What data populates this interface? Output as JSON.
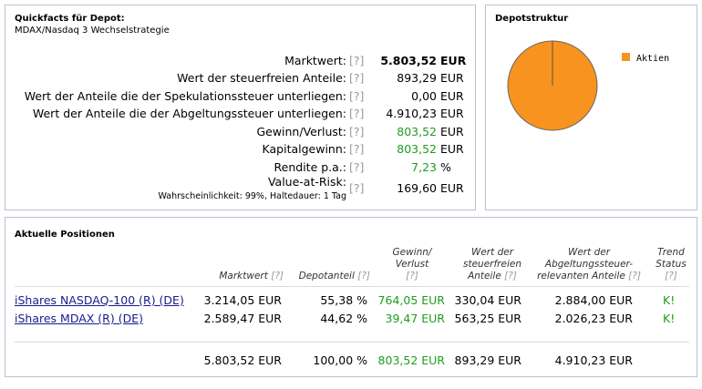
{
  "quickfacts": {
    "title": "Quickfacts für Depot:",
    "subtitle": "MDAX/Nasdaq 3 Wechselstrategie",
    "help": "[?]",
    "rows": [
      {
        "label": "Marktwert:",
        "value": "5.803,52",
        "unit": "EUR",
        "bold": true
      },
      {
        "label": "Wert der steuerfreien Anteile:",
        "value": "893,29",
        "unit": "EUR"
      },
      {
        "label": "Wert der Anteile die der Spekulationssteuer unterliegen:",
        "value": "0,00",
        "unit": "EUR"
      },
      {
        "label": "Wert der Anteile die der Abgeltungssteuer unterliegen:",
        "value": "4.910,23",
        "unit": "EUR"
      },
      {
        "label": "Gewinn/Verlust:",
        "value": "803,52",
        "unit": "EUR",
        "green": true
      },
      {
        "label": "Kapitalgewinn:",
        "value": "803,52",
        "unit": "EUR",
        "green": true
      },
      {
        "label": "Rendite p.a.:",
        "value": "7,23",
        "unit": "%",
        "green": true
      },
      {
        "label": "Value-at-Risk:",
        "sublabel": "Wahrscheinlichkeit: 99%, Haltedauer: 1 Tag",
        "value": "169,60",
        "unit": "EUR"
      }
    ]
  },
  "depotstruktur": {
    "title": "Depotstruktur",
    "legend": [
      {
        "name": "Aktien",
        "color": "#f7931e",
        "share": 1.0
      }
    ]
  },
  "positions": {
    "title": "Aktuelle Positionen",
    "help": "[?]",
    "headers": {
      "marktwert": "Marktwert",
      "depotanteil": "Depotanteil",
      "gewinn": [
        "Gewinn/",
        "Verlust"
      ],
      "steuerfrei": [
        "Wert der",
        "steuerfreien",
        "Anteile"
      ],
      "abgeltung": [
        "Wert der",
        "Abgeltungssteuer-",
        "relevanten Anteile"
      ],
      "trend": [
        "Trend",
        "Status"
      ]
    },
    "rows": [
      {
        "name": "iShares NASDAQ-100 (R) (DE)",
        "marktwert": "3.214,05 EUR",
        "anteil": "55,38 %",
        "gewinn": "764,05 EUR",
        "steuerfrei": "330,04 EUR",
        "abgeltung": "2.884,00 EUR",
        "trend": "K!"
      },
      {
        "name": "iShares MDAX (R) (DE)",
        "marktwert": "2.589,47 EUR",
        "anteil": "44,62 %",
        "gewinn": "39,47 EUR",
        "steuerfrei": "563,25 EUR",
        "abgeltung": "2.026,23 EUR",
        "trend": "K!"
      }
    ],
    "totals": {
      "marktwert": "5.803,52 EUR",
      "anteil": "100,00 %",
      "gewinn": "803,52 EUR",
      "steuerfrei": "893,29 EUR",
      "abgeltung": "4.910,23 EUR"
    }
  }
}
